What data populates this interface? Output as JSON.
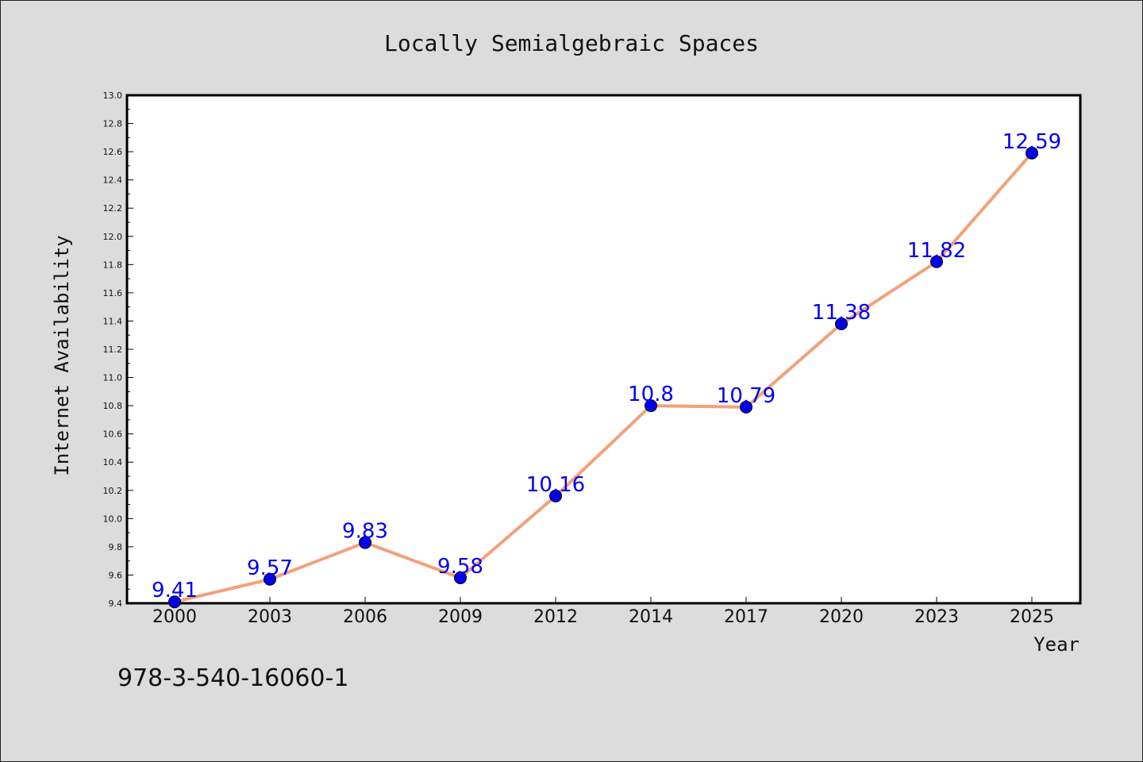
{
  "chart_data": {
    "type": "line",
    "title": "Locally Semialgebraic Spaces",
    "xlabel": "Year",
    "ylabel": "Internet Availability",
    "categories": [
      "2000",
      "2003",
      "2006",
      "2009",
      "2012",
      "2014",
      "2017",
      "2020",
      "2023",
      "2025"
    ],
    "series": [
      {
        "values": [
          9.41,
          9.57,
          9.83,
          9.58,
          10.16,
          10.8,
          10.79,
          11.38,
          11.82,
          12.59
        ],
        "line_color": "#f4a07a",
        "marker_color": "#0000ee"
      }
    ],
    "data_labels": [
      "9.41",
      "9.57",
      "9.83",
      "9.58",
      "10.16",
      "10.8",
      "10.79",
      "11.38",
      "11.82",
      "12.59"
    ],
    "ylim": [
      9.4,
      13.0
    ],
    "yticks": [
      "9.4",
      "9.6",
      "9.8",
      "10.0",
      "10.2",
      "10.4",
      "10.6",
      "10.8",
      "11.0",
      "11.2",
      "11.4",
      "11.6",
      "11.8",
      "12.0",
      "12.2",
      "12.4",
      "12.6",
      "12.8",
      "13.0"
    ],
    "grid": false,
    "legend": "none"
  },
  "footer_text": "978-3-540-16060-1"
}
